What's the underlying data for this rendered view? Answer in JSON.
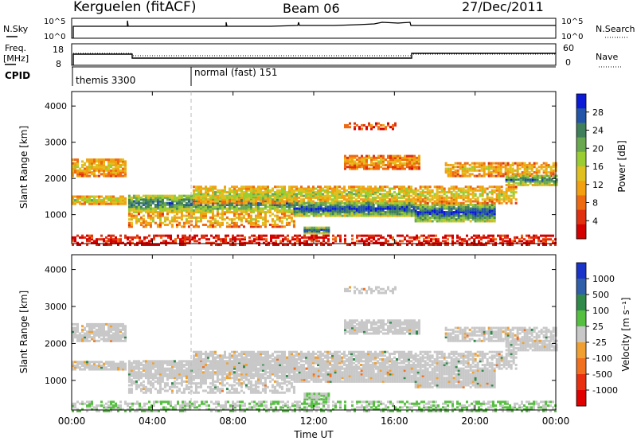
{
  "header": {
    "station": "Kerguelen (fitACF)",
    "beam": "Beam 06",
    "date": "27/Dec/2011"
  },
  "status_panels": {
    "nsky_label": "N.Sky",
    "nsearch_label": "N.Search",
    "count_ticks_left": [
      "10^5",
      "10^0"
    ],
    "count_ticks_right": [
      "10^5",
      "10^0"
    ],
    "freq_label_1": "Freq.",
    "freq_label_2": "[MHz]",
    "freq_ticks": [
      "18",
      "8"
    ],
    "nave_ticks": [
      "60",
      "0"
    ],
    "nave_label": "Nave",
    "cpid_label": "CPID",
    "cpid_segments": [
      {
        "label": "themis 3300",
        "start_h": 0
      },
      {
        "label": "normal (fast) 151",
        "start_h": 6
      }
    ]
  },
  "chart_data": [
    {
      "type": "heatmap",
      "name": "power",
      "ylabel": "Slant Range [km]",
      "xlabel": "",
      "y_ticks": [
        "1000",
        "2000",
        "3000",
        "4000"
      ],
      "y_range_km": [
        200,
        4400
      ],
      "x_range_h": [
        0,
        24
      ],
      "colorbar_label": "Power [dB]",
      "colorbar_ticks": [
        "28",
        "24",
        "20",
        "16",
        "12",
        "8",
        "4"
      ],
      "colorbar_colors": [
        "#0a1ad6",
        "#2255a8",
        "#3f7f5a",
        "#6aa84f",
        "#9acd32",
        "#e0c020",
        "#f2a010",
        "#ee6a10",
        "#e03010",
        "#d40000"
      ]
    },
    {
      "type": "heatmap",
      "name": "velocity",
      "ylabel": "Slant Range [km]",
      "y_ticks": [
        "1000",
        "2000",
        "3000",
        "4000"
      ],
      "y_range_km": [
        200,
        4400
      ],
      "x_range_h": [
        0,
        24
      ],
      "colorbar_label": "Velocity [m s⁻¹]",
      "colorbar_ticks": [
        "1000",
        "500",
        "100",
        "25",
        "-25",
        "-100",
        "-500",
        "-1000"
      ],
      "colorbar_colors": [
        "#1a33c8",
        "#2f5fa8",
        "#2f8a4a",
        "#55c040",
        "#c8c8c8",
        "#f0a030",
        "#f07020",
        "#e83010",
        "#e00000"
      ]
    }
  ],
  "x_axis": {
    "ticks": [
      "00:00",
      "04:00",
      "08:00",
      "12:00",
      "16:00",
      "20:00",
      "00:00"
    ],
    "label": "Time UT"
  }
}
